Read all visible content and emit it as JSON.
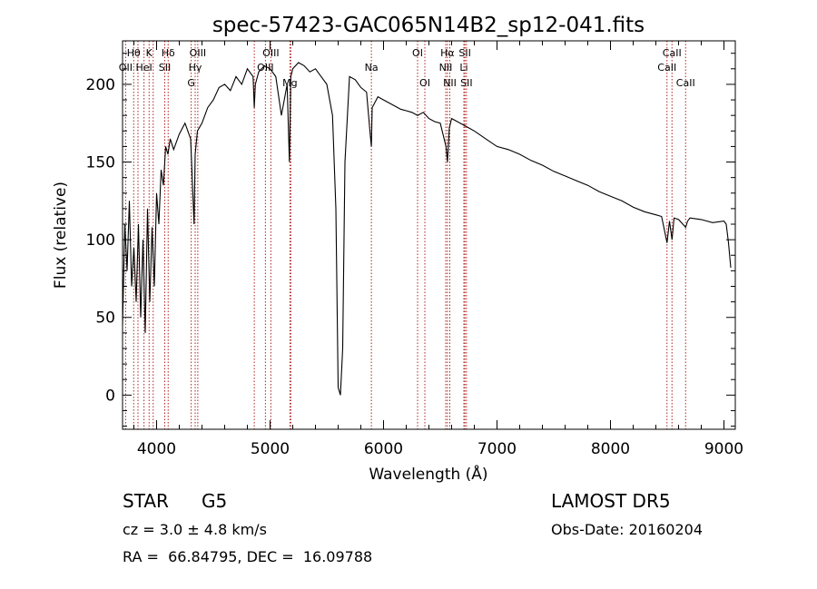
{
  "chart_data": {
    "type": "line",
    "title": "spec-57423-GAC065N14B2_sp12-041.fits",
    "xlabel": "Wavelength (Å)",
    "ylabel": "Flux (relative)",
    "xlim": [
      3700,
      9100
    ],
    "ylim": [
      -22,
      228
    ],
    "xticks": [
      4000,
      5000,
      6000,
      7000,
      8000,
      9000
    ],
    "yticks": [
      0,
      50,
      100,
      150,
      200
    ],
    "grid": false,
    "line_color": "#000000",
    "marker_color": "#b02020",
    "series": [
      {
        "x": [
          3700,
          3720,
          3740,
          3760,
          3780,
          3800,
          3820,
          3840,
          3860,
          3880,
          3900,
          3920,
          3940,
          3960,
          3980,
          4000,
          4020,
          4040,
          4060,
          4080,
          4100,
          4120,
          4150,
          4200,
          4250,
          4300,
          4330,
          4340,
          4360,
          4400,
          4450,
          4500,
          4550,
          4600,
          4650,
          4700,
          4750,
          4800,
          4850,
          4861,
          4870,
          4900,
          4950,
          5000,
          5050,
          5100,
          5150,
          5170,
          5183,
          5200,
          5250,
          5300,
          5350,
          5400,
          5450,
          5500,
          5550,
          5580,
          5600,
          5620,
          5640,
          5660,
          5700,
          5750,
          5800,
          5850,
          5880,
          5893,
          5900,
          5950,
          6000,
          6050,
          6100,
          6150,
          6200,
          6250,
          6300,
          6350,
          6400,
          6450,
          6500,
          6550,
          6563,
          6580,
          6600,
          6650,
          6700,
          6750,
          6800,
          6900,
          7000,
          7100,
          7200,
          7300,
          7400,
          7500,
          7600,
          7700,
          7800,
          7900,
          8000,
          8100,
          8200,
          8300,
          8400,
          8450,
          8498,
          8520,
          8542,
          8560,
          8600,
          8662,
          8680,
          8700,
          8800,
          8900,
          9000,
          9020,
          9040,
          9060
        ],
        "y": [
          45,
          110,
          80,
          125,
          70,
          95,
          60,
          110,
          50,
          100,
          40,
          120,
          60,
          108,
          70,
          130,
          110,
          145,
          135,
          160,
          155,
          165,
          158,
          168,
          175,
          165,
          110,
          155,
          170,
          175,
          185,
          190,
          198,
          200,
          196,
          205,
          200,
          210,
          205,
          185,
          200,
          208,
          212,
          210,
          205,
          180,
          200,
          150,
          205,
          210,
          214,
          212,
          208,
          210,
          205,
          200,
          180,
          120,
          5,
          0,
          30,
          150,
          205,
          203,
          198,
          195,
          170,
          160,
          185,
          192,
          190,
          188,
          186,
          184,
          183,
          182,
          180,
          182,
          178,
          176,
          175,
          160,
          150,
          172,
          178,
          176,
          174,
          172,
          170,
          165,
          160,
          158,
          155,
          151,
          148,
          144,
          141,
          138,
          135,
          131,
          128,
          125,
          121,
          118,
          116,
          115,
          98,
          112,
          100,
          114,
          113,
          108,
          112,
          114,
          113,
          111,
          112,
          110,
          98,
          82
        ]
      }
    ],
    "annotations": {
      "lines": [
        {
          "name": "Hδ",
          "wavelength": 4102,
          "row": 1
        },
        {
          "name": "K",
          "wavelength": 3934,
          "row": 1
        },
        {
          "name": "Hθ",
          "wavelength": 3798,
          "row": 1
        },
        {
          "name": "OII",
          "wavelength": 3727,
          "row": 2
        },
        {
          "name": "HeI",
          "wavelength": 3889,
          "row": 2
        },
        {
          "name": "SII",
          "wavelength": 4072,
          "row": 2
        },
        {
          "name": "OIII",
          "wavelength": 4363,
          "row": 1
        },
        {
          "name": "Hγ",
          "wavelength": 4340,
          "row": 2
        },
        {
          "name": "G",
          "wavelength": 4305,
          "row": 3
        },
        {
          "name": "OIII",
          "wavelength": 5007,
          "row": 1
        },
        {
          "name": "OIII",
          "wavelength": 4959,
          "row": 2
        },
        {
          "name": "Mg",
          "wavelength": 5175,
          "row": 3
        },
        {
          "name": "Na",
          "wavelength": 5893,
          "row": 2
        },
        {
          "name": "OI",
          "wavelength": 6300,
          "row": 1
        },
        {
          "name": "OI",
          "wavelength": 6364,
          "row": 3
        },
        {
          "name": "Hα",
          "wavelength": 6563,
          "row": 1
        },
        {
          "name": "SII",
          "wavelength": 6717,
          "row": 1
        },
        {
          "name": "NII",
          "wavelength": 6548,
          "row": 2
        },
        {
          "name": "Li",
          "wavelength": 6708,
          "row": 2
        },
        {
          "name": "NII",
          "wavelength": 6584,
          "row": 3
        },
        {
          "name": "SII",
          "wavelength": 6731,
          "row": 3
        },
        {
          "name": "CaII",
          "wavelength": 8542,
          "row": 1
        },
        {
          "name": "CaII",
          "wavelength": 8498,
          "row": 2
        },
        {
          "name": "CaII",
          "wavelength": 8662,
          "row": 3
        }
      ],
      "extra_marker_wavelengths": [
        3836,
        3970,
        4861,
        5183,
        6300
      ]
    }
  },
  "info": {
    "object_class": "STAR",
    "subclass": "G5",
    "survey": "LAMOST DR5",
    "cz": "cz = 3.0 ± 4.8 km/s",
    "obs_date": "Obs-Date: 20160204",
    "coords": "RA =  66.84795, DEC =  16.09788"
  }
}
